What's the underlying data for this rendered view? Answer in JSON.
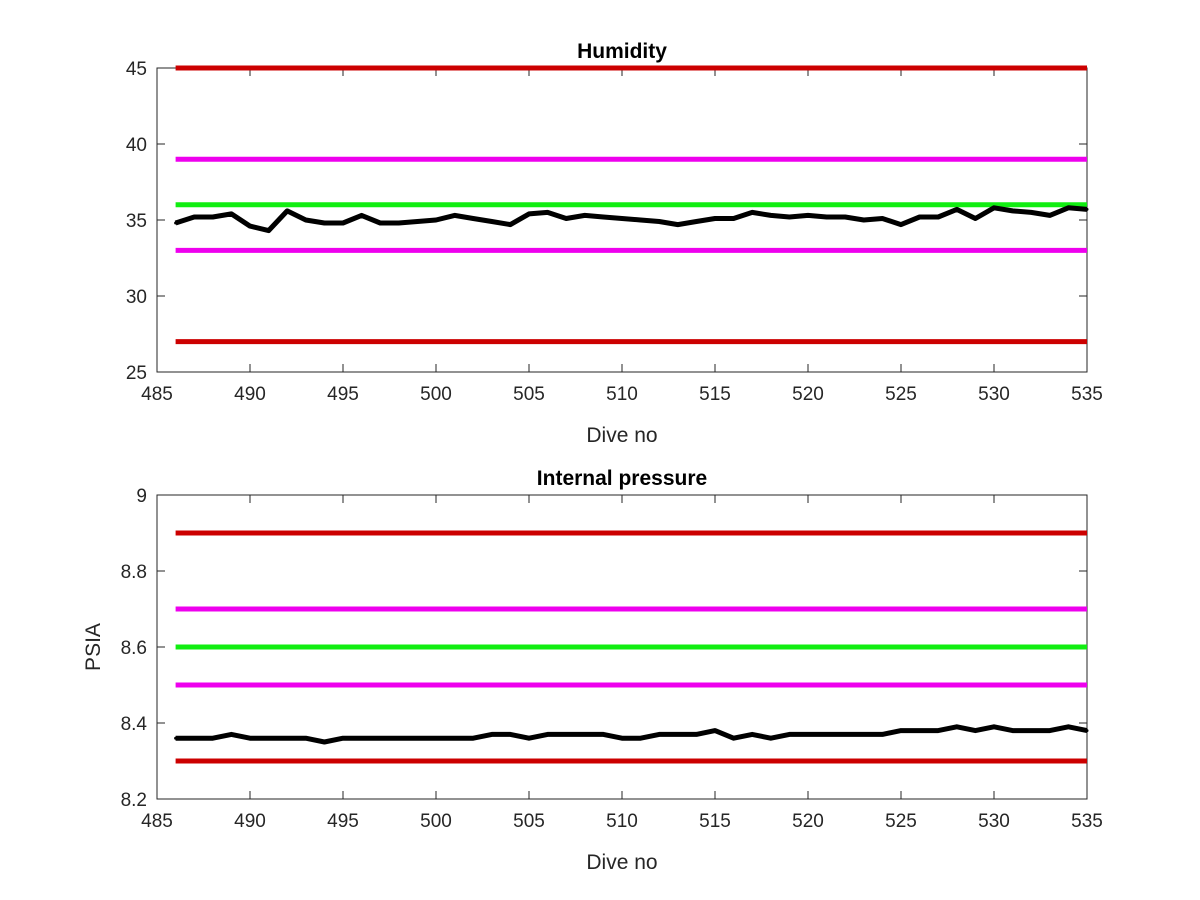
{
  "chart_data": [
    {
      "type": "line",
      "title": "Humidity",
      "xlabel": "Dive no",
      "ylabel": "",
      "xlim": [
        485,
        535
      ],
      "ylim": [
        25,
        45
      ],
      "xticks": [
        "485",
        "490",
        "495",
        "500",
        "505",
        "510",
        "515",
        "520",
        "525",
        "530",
        "535"
      ],
      "yticks": [
        "25",
        "30",
        "35",
        "40",
        "45"
      ],
      "grid": false,
      "reference_lines": [
        {
          "y": 45,
          "color": "#cc0000"
        },
        {
          "y": 39,
          "color": "#ee00ee"
        },
        {
          "y": 36,
          "color": "#11ee11"
        },
        {
          "y": 33,
          "color": "#ee00ee"
        },
        {
          "y": 27,
          "color": "#cc0000"
        }
      ],
      "series": [
        {
          "color": "#000000",
          "x": [
            486,
            487,
            488,
            489,
            490,
            491,
            492,
            493,
            494,
            495,
            496,
            497,
            498,
            499,
            500,
            501,
            502,
            503,
            504,
            505,
            506,
            507,
            508,
            509,
            510,
            511,
            512,
            513,
            514,
            515,
            516,
            517,
            518,
            519,
            520,
            521,
            522,
            523,
            524,
            525,
            526,
            527,
            528,
            529,
            530,
            531,
            532,
            533,
            534,
            535
          ],
          "y": [
            34.8,
            35.2,
            35.2,
            35.4,
            34.6,
            34.3,
            35.6,
            35.0,
            34.8,
            34.8,
            35.3,
            34.8,
            34.8,
            34.9,
            35.0,
            35.3,
            35.1,
            34.9,
            34.7,
            35.4,
            35.5,
            35.1,
            35.3,
            35.2,
            35.1,
            35.0,
            34.9,
            34.7,
            34.9,
            35.1,
            35.1,
            35.5,
            35.3,
            35.2,
            35.3,
            35.2,
            35.2,
            35.0,
            35.1,
            34.7,
            35.2,
            35.2,
            35.7,
            35.1,
            35.8,
            35.6,
            35.5,
            35.3,
            35.8,
            35.7
          ]
        }
      ]
    },
    {
      "type": "line",
      "title": "Internal pressure",
      "xlabel": "Dive no",
      "ylabel": "PSIA",
      "xlim": [
        485,
        535
      ],
      "ylim": [
        8.2,
        9.0
      ],
      "xticks": [
        "485",
        "490",
        "495",
        "500",
        "505",
        "510",
        "515",
        "520",
        "525",
        "530",
        "535"
      ],
      "yticks": [
        "8.2",
        "8.4",
        "8.6",
        "8.8",
        "9"
      ],
      "grid": false,
      "reference_lines": [
        {
          "y": 8.9,
          "color": "#cc0000"
        },
        {
          "y": 8.7,
          "color": "#ee00ee"
        },
        {
          "y": 8.6,
          "color": "#11ee11"
        },
        {
          "y": 8.5,
          "color": "#ee00ee"
        },
        {
          "y": 8.3,
          "color": "#cc0000"
        }
      ],
      "series": [
        {
          "color": "#000000",
          "x": [
            486,
            487,
            488,
            489,
            490,
            491,
            492,
            493,
            494,
            495,
            496,
            497,
            498,
            499,
            500,
            501,
            502,
            503,
            504,
            505,
            506,
            507,
            508,
            509,
            510,
            511,
            512,
            513,
            514,
            515,
            516,
            517,
            518,
            519,
            520,
            521,
            522,
            523,
            524,
            525,
            526,
            527,
            528,
            529,
            530,
            531,
            532,
            533,
            534,
            535
          ],
          "y": [
            8.36,
            8.36,
            8.36,
            8.37,
            8.36,
            8.36,
            8.36,
            8.36,
            8.35,
            8.36,
            8.36,
            8.36,
            8.36,
            8.36,
            8.36,
            8.36,
            8.36,
            8.37,
            8.37,
            8.36,
            8.37,
            8.37,
            8.37,
            8.37,
            8.36,
            8.36,
            8.37,
            8.37,
            8.37,
            8.38,
            8.36,
            8.37,
            8.36,
            8.37,
            8.37,
            8.37,
            8.37,
            8.37,
            8.37,
            8.38,
            8.38,
            8.38,
            8.39,
            8.38,
            8.39,
            8.38,
            8.38,
            8.38,
            8.39,
            8.38
          ]
        }
      ]
    }
  ]
}
